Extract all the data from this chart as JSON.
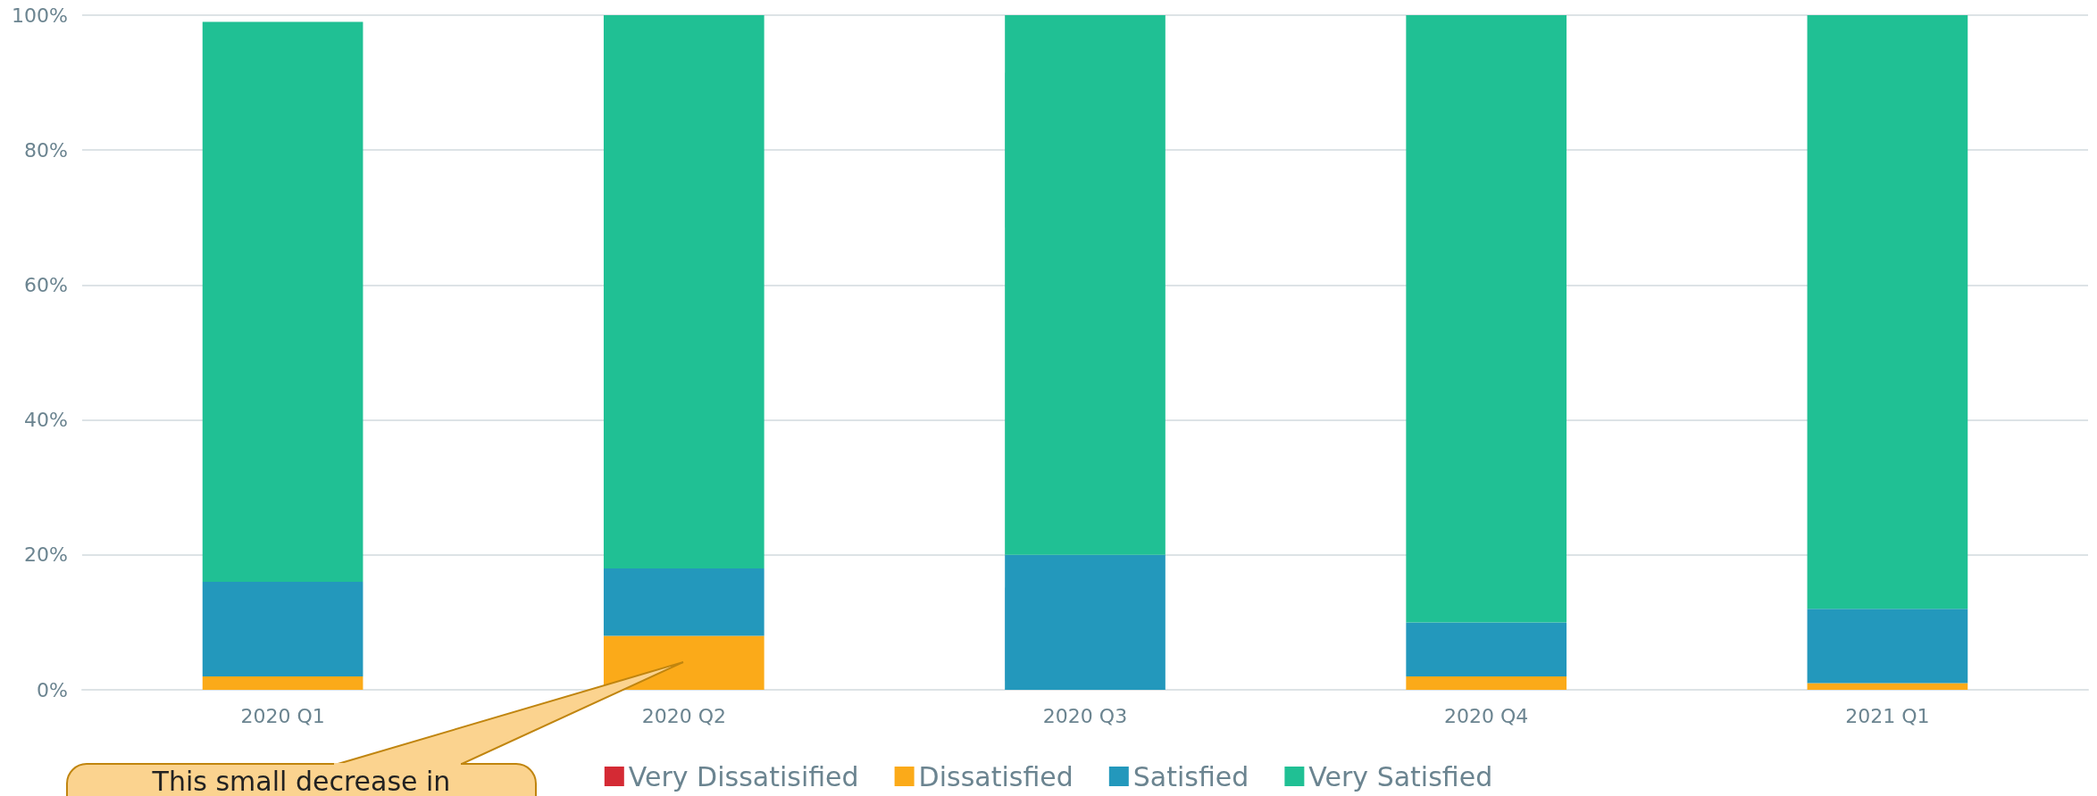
{
  "chart_data": {
    "type": "bar",
    "stacked": true,
    "categories": [
      "2020 Q1",
      "2020 Q2",
      "2020 Q3",
      "2020 Q4",
      "2021 Q1"
    ],
    "series": [
      {
        "name": "Very Dissatisified",
        "color": "#d42a34",
        "values": [
          0,
          0,
          0,
          0,
          0
        ]
      },
      {
        "name": "Dissatisfied",
        "color": "#fbaa19",
        "values": [
          2,
          8,
          0,
          2,
          1
        ]
      },
      {
        "name": "Satisfied",
        "color": "#2398bc",
        "values": [
          14,
          10,
          20,
          8,
          11
        ]
      },
      {
        "name": "Very Satisfied",
        "color": "#20c094",
        "values": [
          83,
          82,
          80,
          90,
          88
        ]
      }
    ],
    "ylim": [
      0,
      100
    ],
    "yticks": [
      {
        "value": 0,
        "label": "0%"
      },
      {
        "value": 20,
        "label": "20%"
      },
      {
        "value": 40,
        "label": "40%"
      },
      {
        "value": 60,
        "label": "60%"
      },
      {
        "value": 80,
        "label": "80%"
      },
      {
        "value": 100,
        "label": "100%"
      }
    ],
    "grid": "y",
    "legend": "bottom",
    "annotations": [
      "This small decrease in"
    ]
  }
}
